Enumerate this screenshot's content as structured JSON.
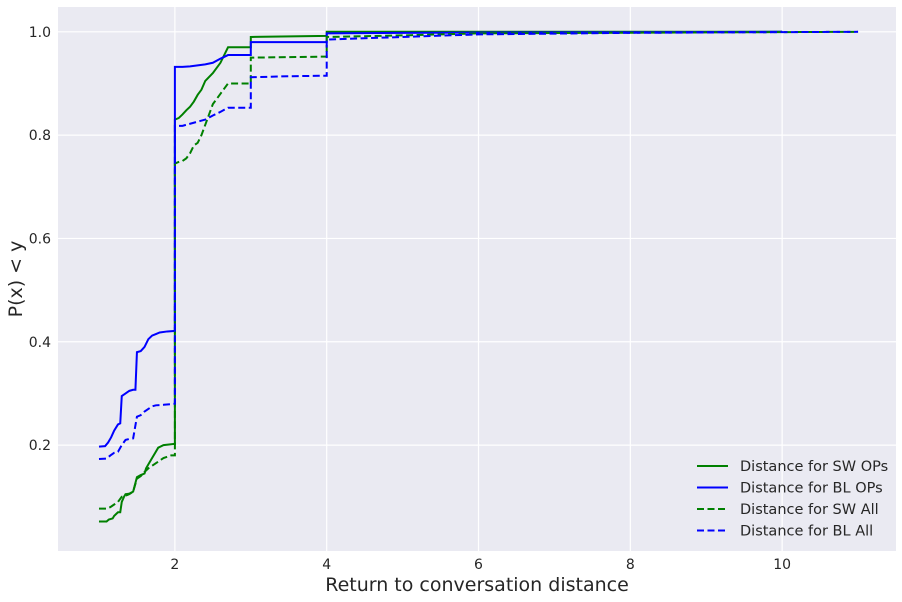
{
  "chart_data": {
    "type": "line",
    "title": "",
    "xlabel": "Return to conversation distance",
    "ylabel": "P(x) < y",
    "xlim": [
      0.46,
      11.5
    ],
    "ylim": [
      -0.005,
      1.048
    ],
    "xticks": [
      2,
      4,
      6,
      8,
      10
    ],
    "yticks": [
      0.2,
      0.4,
      0.6,
      0.8,
      1.0
    ],
    "xtick_labels": [
      "2",
      "4",
      "6",
      "8",
      "10"
    ],
    "ytick_labels": [
      "0.2",
      "0.4",
      "0.6",
      "0.8",
      "1.0"
    ],
    "grid": true,
    "legend_position": "lower-right",
    "colors": {
      "background": "#eaeaf2",
      "grid": "#ffffff",
      "green": "#008000",
      "blue": "#0000ff"
    },
    "series": [
      {
        "name": "Distance for SW OPs",
        "color": "#008000",
        "style": "solid",
        "points": [
          [
            1.0,
            0.052
          ],
          [
            1.1,
            0.052
          ],
          [
            1.13,
            0.056
          ],
          [
            1.18,
            0.058
          ],
          [
            1.2,
            0.063
          ],
          [
            1.25,
            0.07
          ],
          [
            1.28,
            0.07
          ],
          [
            1.3,
            0.09
          ],
          [
            1.33,
            0.1
          ],
          [
            1.35,
            0.105
          ],
          [
            1.4,
            0.106
          ],
          [
            1.45,
            0.11
          ],
          [
            1.5,
            0.138
          ],
          [
            1.55,
            0.142
          ],
          [
            1.6,
            0.145
          ],
          [
            1.62,
            0.155
          ],
          [
            1.66,
            0.165
          ],
          [
            1.7,
            0.175
          ],
          [
            1.74,
            0.185
          ],
          [
            1.78,
            0.195
          ],
          [
            1.85,
            0.2
          ],
          [
            1.98,
            0.202
          ],
          [
            2.0,
            0.202
          ],
          [
            2.0,
            0.83
          ],
          [
            2.05,
            0.833
          ],
          [
            2.1,
            0.84
          ],
          [
            2.15,
            0.848
          ],
          [
            2.2,
            0.855
          ],
          [
            2.25,
            0.865
          ],
          [
            2.3,
            0.878
          ],
          [
            2.35,
            0.888
          ],
          [
            2.4,
            0.905
          ],
          [
            2.5,
            0.92
          ],
          [
            2.6,
            0.94
          ],
          [
            2.7,
            0.97
          ],
          [
            3.0,
            0.97
          ],
          [
            3.0,
            0.99
          ],
          [
            4.0,
            0.992
          ],
          [
            4.0,
            1.0
          ],
          [
            10.0,
            1.0
          ]
        ]
      },
      {
        "name": "Distance for BL OPs",
        "color": "#0000ff",
        "style": "solid",
        "points": [
          [
            1.0,
            0.197
          ],
          [
            1.08,
            0.198
          ],
          [
            1.12,
            0.205
          ],
          [
            1.16,
            0.215
          ],
          [
            1.2,
            0.228
          ],
          [
            1.25,
            0.24
          ],
          [
            1.28,
            0.242
          ],
          [
            1.3,
            0.295
          ],
          [
            1.35,
            0.3
          ],
          [
            1.4,
            0.305
          ],
          [
            1.45,
            0.307
          ],
          [
            1.48,
            0.307
          ],
          [
            1.5,
            0.38
          ],
          [
            1.55,
            0.382
          ],
          [
            1.6,
            0.39
          ],
          [
            1.65,
            0.405
          ],
          [
            1.7,
            0.412
          ],
          [
            1.75,
            0.415
          ],
          [
            1.8,
            0.418
          ],
          [
            1.9,
            0.42
          ],
          [
            2.0,
            0.421
          ],
          [
            2.0,
            0.932
          ],
          [
            2.1,
            0.932
          ],
          [
            2.2,
            0.933
          ],
          [
            2.3,
            0.935
          ],
          [
            2.4,
            0.937
          ],
          [
            2.5,
            0.94
          ],
          [
            2.6,
            0.948
          ],
          [
            2.7,
            0.955
          ],
          [
            3.0,
            0.955
          ],
          [
            3.0,
            0.98
          ],
          [
            4.0,
            0.98
          ],
          [
            4.0,
            0.997
          ],
          [
            5.0,
            0.998
          ],
          [
            10.0,
            1.0
          ]
        ]
      },
      {
        "name": "Distance for SW All",
        "color": "#008000",
        "style": "dashed",
        "points": [
          [
            1.0,
            0.077
          ],
          [
            1.1,
            0.077
          ],
          [
            1.15,
            0.08
          ],
          [
            1.2,
            0.085
          ],
          [
            1.25,
            0.09
          ],
          [
            1.3,
            0.1
          ],
          [
            1.35,
            0.102
          ],
          [
            1.4,
            0.105
          ],
          [
            1.45,
            0.11
          ],
          [
            1.5,
            0.135
          ],
          [
            1.55,
            0.14
          ],
          [
            1.6,
            0.148
          ],
          [
            1.65,
            0.155
          ],
          [
            1.7,
            0.16
          ],
          [
            1.75,
            0.165
          ],
          [
            1.8,
            0.17
          ],
          [
            1.85,
            0.175
          ],
          [
            1.95,
            0.18
          ],
          [
            2.0,
            0.18
          ],
          [
            2.0,
            0.745
          ],
          [
            2.05,
            0.748
          ],
          [
            2.1,
            0.75
          ],
          [
            2.15,
            0.755
          ],
          [
            2.2,
            0.765
          ],
          [
            2.25,
            0.78
          ],
          [
            2.3,
            0.785
          ],
          [
            2.35,
            0.8
          ],
          [
            2.4,
            0.82
          ],
          [
            2.45,
            0.84
          ],
          [
            2.5,
            0.86
          ],
          [
            2.6,
            0.88
          ],
          [
            2.7,
            0.9
          ],
          [
            3.0,
            0.9
          ],
          [
            3.0,
            0.95
          ],
          [
            4.0,
            0.952
          ],
          [
            4.0,
            0.99
          ],
          [
            5.0,
            0.993
          ],
          [
            6.0,
            0.997
          ],
          [
            11.0,
            1.0
          ]
        ]
      },
      {
        "name": "Distance for BL All",
        "color": "#0000ff",
        "style": "dashed",
        "points": [
          [
            1.0,
            0.173
          ],
          [
            1.1,
            0.174
          ],
          [
            1.15,
            0.18
          ],
          [
            1.2,
            0.185
          ],
          [
            1.25,
            0.187
          ],
          [
            1.3,
            0.2
          ],
          [
            1.35,
            0.21
          ],
          [
            1.4,
            0.212
          ],
          [
            1.45,
            0.213
          ],
          [
            1.5,
            0.255
          ],
          [
            1.55,
            0.258
          ],
          [
            1.6,
            0.265
          ],
          [
            1.65,
            0.27
          ],
          [
            1.7,
            0.275
          ],
          [
            1.75,
            0.277
          ],
          [
            1.85,
            0.278
          ],
          [
            2.0,
            0.28
          ],
          [
            2.0,
            0.818
          ],
          [
            2.1,
            0.818
          ],
          [
            2.2,
            0.822
          ],
          [
            2.3,
            0.826
          ],
          [
            2.4,
            0.83
          ],
          [
            2.5,
            0.838
          ],
          [
            2.6,
            0.845
          ],
          [
            2.7,
            0.853
          ],
          [
            3.0,
            0.853
          ],
          [
            3.0,
            0.912
          ],
          [
            3.5,
            0.914
          ],
          [
            4.0,
            0.915
          ],
          [
            4.0,
            0.985
          ],
          [
            5.0,
            0.99
          ],
          [
            6.0,
            0.995
          ],
          [
            8.0,
            0.998
          ],
          [
            11.0,
            1.0
          ]
        ]
      }
    ]
  }
}
